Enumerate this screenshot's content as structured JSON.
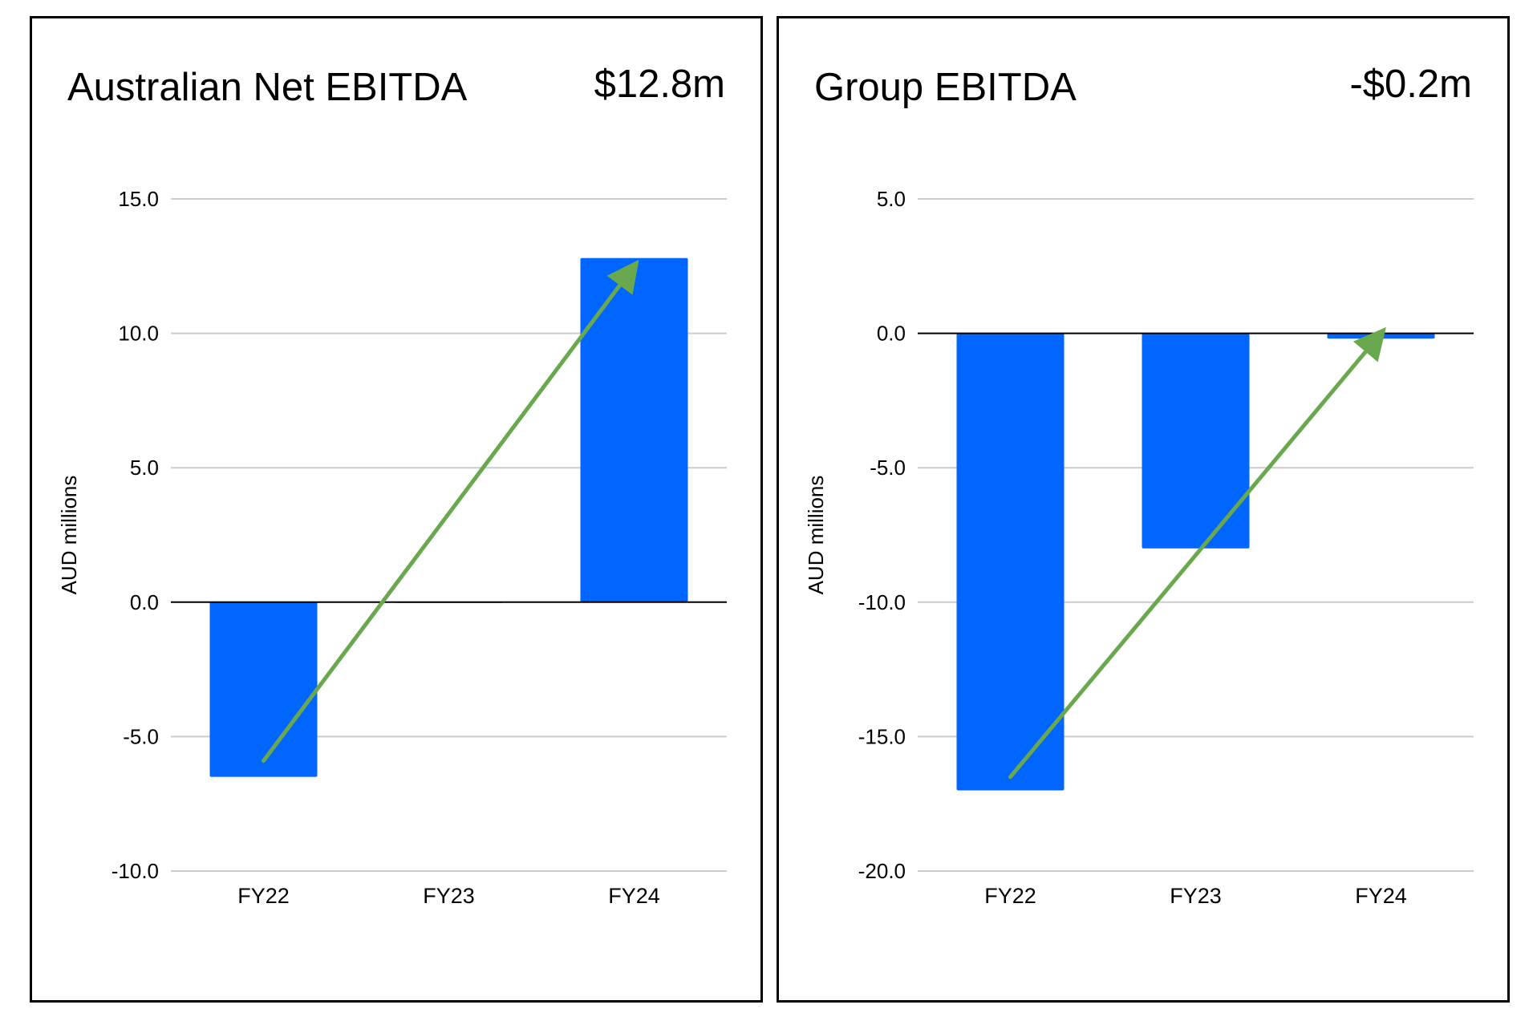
{
  "colors": {
    "bar": "#0066ff",
    "arrow": "#6aa84f",
    "grid": "#cccccc",
    "zero_line": "#000000"
  },
  "chart_data": [
    {
      "type": "bar",
      "title": "Australian Net EBITDA",
      "headline_value": "$12.8m",
      "categories": [
        "FY22",
        "FY23",
        "FY24"
      ],
      "values": [
        -6.5,
        0.0,
        12.8
      ],
      "xlabel": "",
      "ylabel": "AUD millions",
      "ylim": [
        -10.0,
        15.0
      ],
      "yticks": [
        15.0,
        10.0,
        5.0,
        0.0,
        -5.0,
        -10.0
      ],
      "ytick_labels": [
        "15.0",
        "10.0",
        "5.0",
        "0.0",
        "-5.0",
        "-10.0"
      ],
      "grid": true,
      "trend_arrow": {
        "from": [
          "FY22",
          -5.9
        ],
        "to": [
          "FY24",
          12.5
        ]
      }
    },
    {
      "type": "bar",
      "title": "Group EBITDA",
      "headline_value": "-$0.2m",
      "categories": [
        "FY22",
        "FY23",
        "FY24"
      ],
      "values": [
        -17.0,
        -8.0,
        -0.2
      ],
      "xlabel": "",
      "ylabel": "AUD millions",
      "ylim": [
        -20.0,
        5.0
      ],
      "yticks": [
        5.0,
        0.0,
        -5.0,
        -10.0,
        -15.0,
        -20.0
      ],
      "ytick_labels": [
        "5.0",
        "0.0",
        "-5.0",
        "-10.0",
        "-15.0",
        "-20.0"
      ],
      "grid": true,
      "trend_arrow": {
        "from": [
          "FY22",
          -16.5
        ],
        "to": [
          "FY24",
          0.0
        ]
      }
    }
  ]
}
